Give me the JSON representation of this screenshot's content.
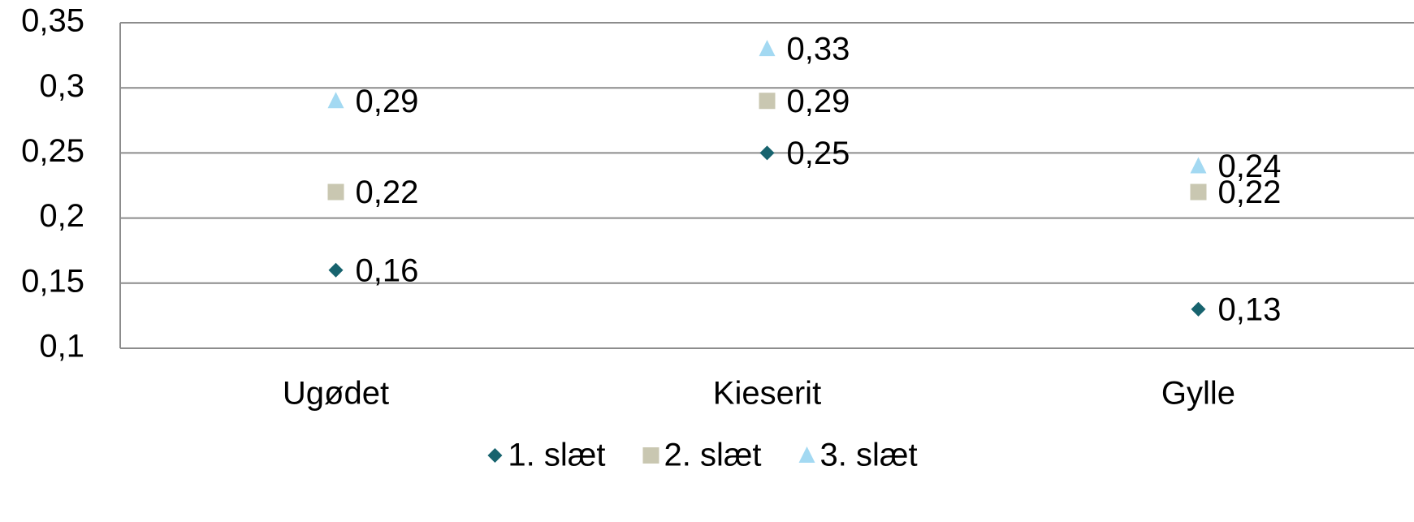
{
  "chart_data": {
    "type": "scatter",
    "categories": [
      "Ugødet",
      "Kieserit",
      "Gylle"
    ],
    "series": [
      {
        "name": "1. slæt",
        "color": "#17636e",
        "marker": "diamond",
        "values": [
          0.16,
          0.25,
          0.13
        ],
        "value_labels": [
          "0,16",
          "0,25",
          "0,13"
        ]
      },
      {
        "name": "2. slæt",
        "color": "#c9c7b1",
        "marker": "square",
        "values": [
          0.22,
          0.29,
          0.22
        ],
        "value_labels": [
          "0,22",
          "0,29",
          "0,22"
        ]
      },
      {
        "name": "3. slæt",
        "color": "#a3d9f2",
        "marker": "triangle",
        "values": [
          0.29,
          0.33,
          0.24
        ],
        "value_labels": [
          "0,29",
          "0,33",
          "0,24"
        ]
      }
    ],
    "ylim": [
      0.1,
      0.35
    ],
    "yticks": [
      {
        "value": 0.1,
        "label": "0,1"
      },
      {
        "value": 0.15,
        "label": "0,15"
      },
      {
        "value": 0.2,
        "label": "0,2"
      },
      {
        "value": 0.25,
        "label": "0,25"
      },
      {
        "value": 0.3,
        "label": "0,3"
      },
      {
        "value": 0.35,
        "label": "0,35"
      }
    ],
    "grid": true,
    "legend": "bottom"
  }
}
